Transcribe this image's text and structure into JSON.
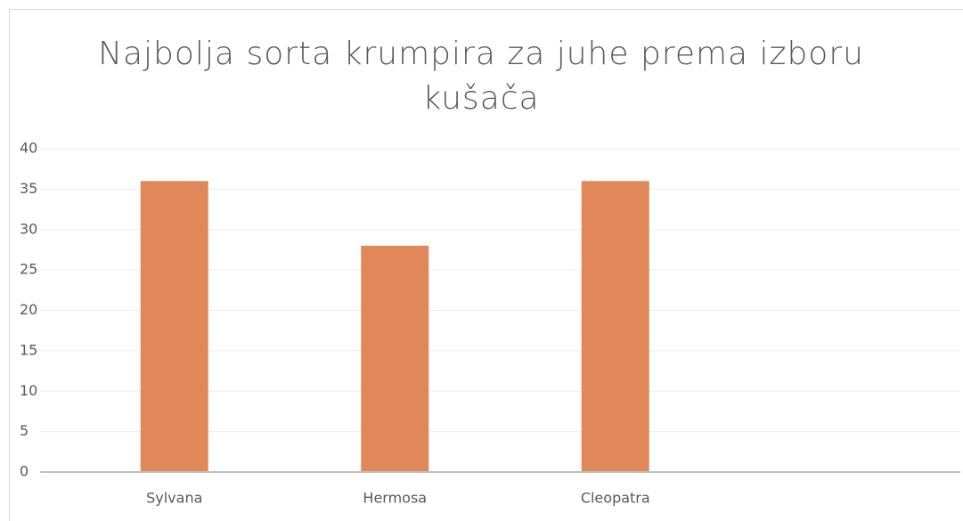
{
  "chart_data": {
    "type": "bar",
    "title": "Najbolja sorta krumpira za juhe prema izboru kušača",
    "categories": [
      "Sylvana",
      "Hermosa",
      "Cleopatra",
      null
    ],
    "values": [
      36,
      28,
      36,
      null
    ],
    "color": "#e0885a",
    "ylim": [
      0,
      40
    ],
    "yticks": [
      0,
      5,
      10,
      15,
      20,
      25,
      30,
      35,
      40
    ],
    "grid": true
  }
}
